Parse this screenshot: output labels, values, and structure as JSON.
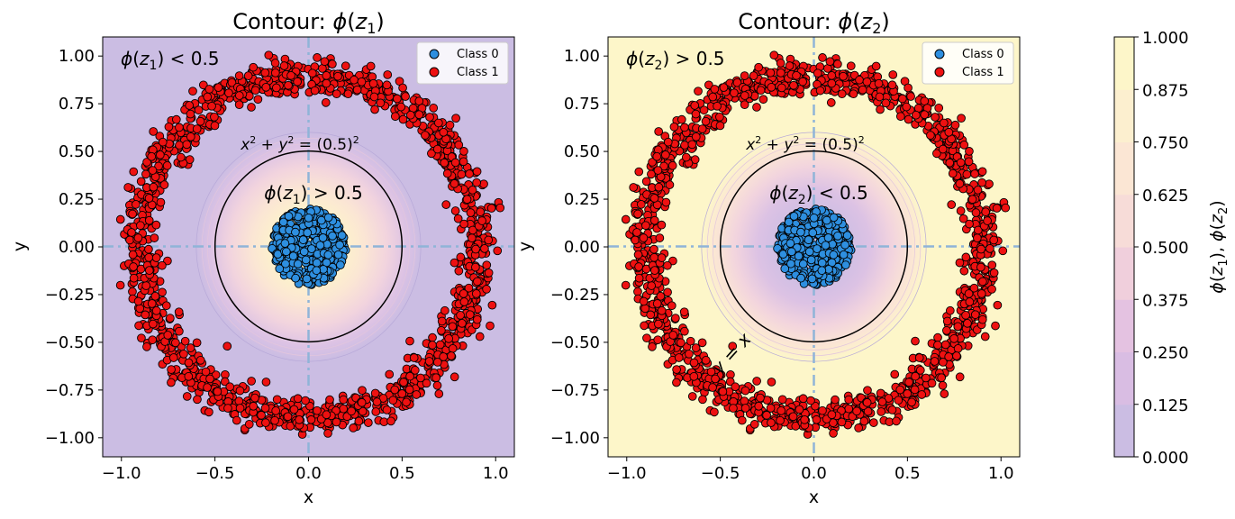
{
  "chart_data": [
    {
      "type": "scatter",
      "panel": "left",
      "title": "Contour: φ(z₁)",
      "xlabel": "x",
      "ylabel": "y",
      "xlim": [
        -1.1,
        1.1
      ],
      "ylim": [
        -1.1,
        1.1
      ],
      "xticks": [
        -1.0,
        -0.5,
        0.0,
        0.5,
        1.0
      ],
      "xtick_labels": [
        "−1.0",
        "−0.5",
        "0.0",
        "0.5",
        "1.0"
      ],
      "yticks": [
        1.0,
        0.75,
        0.5,
        0.25,
        0.0,
        -0.25,
        -0.5,
        -0.75,
        -1.0
      ],
      "ytick_labels": [
        "1.00",
        "0.75",
        "0.50",
        "0.25",
        "0.00",
        "−0.25",
        "−0.50",
        "−0.75",
        "−1.00"
      ],
      "background_level": "low",
      "series": [
        {
          "name": "Class 0",
          "color": "#2e8fe0",
          "shape": "disc",
          "center": [
            0,
            0
          ],
          "radius_max": 0.2,
          "count": 450
        },
        {
          "name": "Class 1",
          "color": "#ee1111",
          "shape": "ring",
          "radius": 0.9,
          "spread": 0.05,
          "count": 1300
        }
      ],
      "circle": {
        "radius": 0.5,
        "label": "x² + y² = (0.5)²"
      },
      "annotations": {
        "outside": "φ(z₁) < 0.5",
        "inside": "φ(z₁) > 0.5"
      }
    },
    {
      "type": "scatter",
      "panel": "right",
      "title": "Contour: φ(z₂)",
      "xlabel": "x",
      "ylabel": "y",
      "xlim": [
        -1.1,
        1.1
      ],
      "ylim": [
        -1.1,
        1.1
      ],
      "xticks": [
        -1.0,
        -0.5,
        0.0,
        0.5,
        1.0
      ],
      "xtick_labels": [
        "−1.0",
        "−0.5",
        "0.0",
        "0.5",
        "1.0"
      ],
      "yticks": [
        1.0,
        0.75,
        0.5,
        0.25,
        0.0,
        -0.25,
        -0.5,
        -0.75,
        -1.0
      ],
      "ytick_labels": [
        "1.00",
        "0.75",
        "0.50",
        "0.25",
        "0.00",
        "−0.25",
        "−0.50",
        "−0.75",
        "−1.00"
      ],
      "background_level": "high",
      "series": [
        {
          "name": "Class 0",
          "color": "#2e8fe0",
          "shape": "disc",
          "center": [
            0,
            0
          ],
          "radius_max": 0.2,
          "count": 450
        },
        {
          "name": "Class 1",
          "color": "#ee1111",
          "shape": "ring",
          "radius": 0.9,
          "spread": 0.05,
          "count": 1300
        }
      ],
      "circle": {
        "radius": 0.5,
        "label": "x² + y² = (0.5)²"
      },
      "annotations": {
        "outside": "φ(z₂) > 0.5",
        "inside": "φ(z₂) < 0.5",
        "extra": "y = x"
      }
    }
  ],
  "colorbar": {
    "label": "φ(z₁), φ(z₂)",
    "ticks": [
      0.0,
      0.125,
      0.25,
      0.375,
      0.5,
      0.625,
      0.75,
      0.875,
      1.0
    ],
    "tick_labels": [
      "0.000",
      "0.125",
      "0.250",
      "0.375",
      "0.500",
      "0.625",
      "0.750",
      "0.875",
      "1.000"
    ],
    "colors": [
      "#cbbde3",
      "#d9bde3",
      "#e4c2e1",
      "#f0cfdc",
      "#f7dcd8",
      "#fbe6d4",
      "#fcefcf",
      "#fdf6c9"
    ]
  }
}
